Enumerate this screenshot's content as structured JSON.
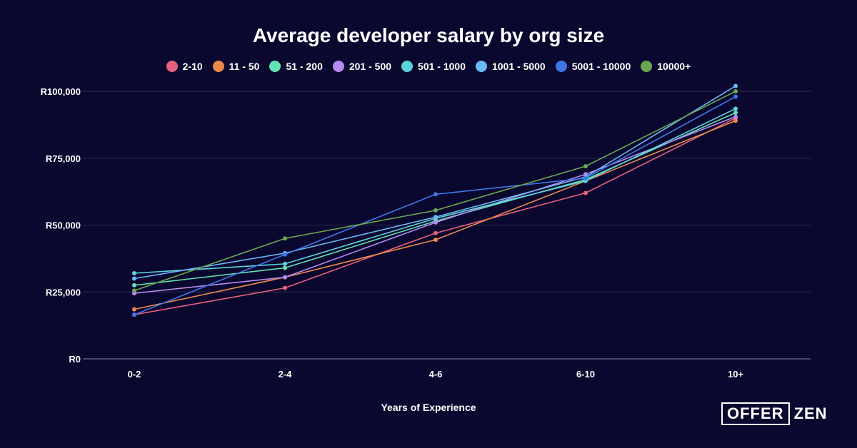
{
  "chart_data": {
    "type": "line",
    "title": "Average developer salary by org size",
    "xlabel": "Years of Experience",
    "ylabel": "",
    "categories": [
      "0-2",
      "2-4",
      "4-6",
      "6-10",
      "10+"
    ],
    "ylim": [
      0,
      100000
    ],
    "yticks": [
      {
        "value": 0,
        "label": "R0"
      },
      {
        "value": 25000,
        "label": "R25,000"
      },
      {
        "value": 50000,
        "label": "R50,000"
      },
      {
        "value": 75000,
        "label": "R75,000"
      },
      {
        "value": 100000,
        "label": "R100,000"
      }
    ],
    "grid": true,
    "legend_position": "top-center",
    "series": [
      {
        "name": "2-10",
        "color": "#e8607f",
        "values": [
          16500,
          26500,
          47000,
          62000,
          90000
        ]
      },
      {
        "name": "11 - 50",
        "color": "#e88a4c",
        "values": [
          18500,
          30500,
          44500,
          66500,
          89000
        ]
      },
      {
        "name": "51 - 200",
        "color": "#63e2b3",
        "values": [
          27500,
          34000,
          51500,
          67000,
          92000
        ]
      },
      {
        "name": "201 - 500",
        "color": "#b78af0",
        "values": [
          24500,
          30500,
          51000,
          69000,
          90500
        ]
      },
      {
        "name": "501 - 1000",
        "color": "#5dd3dc",
        "values": [
          32000,
          35500,
          52500,
          66500,
          93500
        ]
      },
      {
        "name": "1001 - 5000",
        "color": "#6ab8f5",
        "values": [
          30000,
          39500,
          53000,
          68000,
          102000
        ]
      },
      {
        "name": "5001 - 10000",
        "color": "#3f76e6",
        "values": [
          16500,
          39000,
          61500,
          67500,
          98000
        ]
      },
      {
        "name": "10000+",
        "color": "#6aa84f",
        "values": [
          25500,
          45000,
          55500,
          72000,
          100000
        ]
      }
    ]
  },
  "logo": {
    "boxed": "OFFER",
    "rest": "ZEN"
  }
}
